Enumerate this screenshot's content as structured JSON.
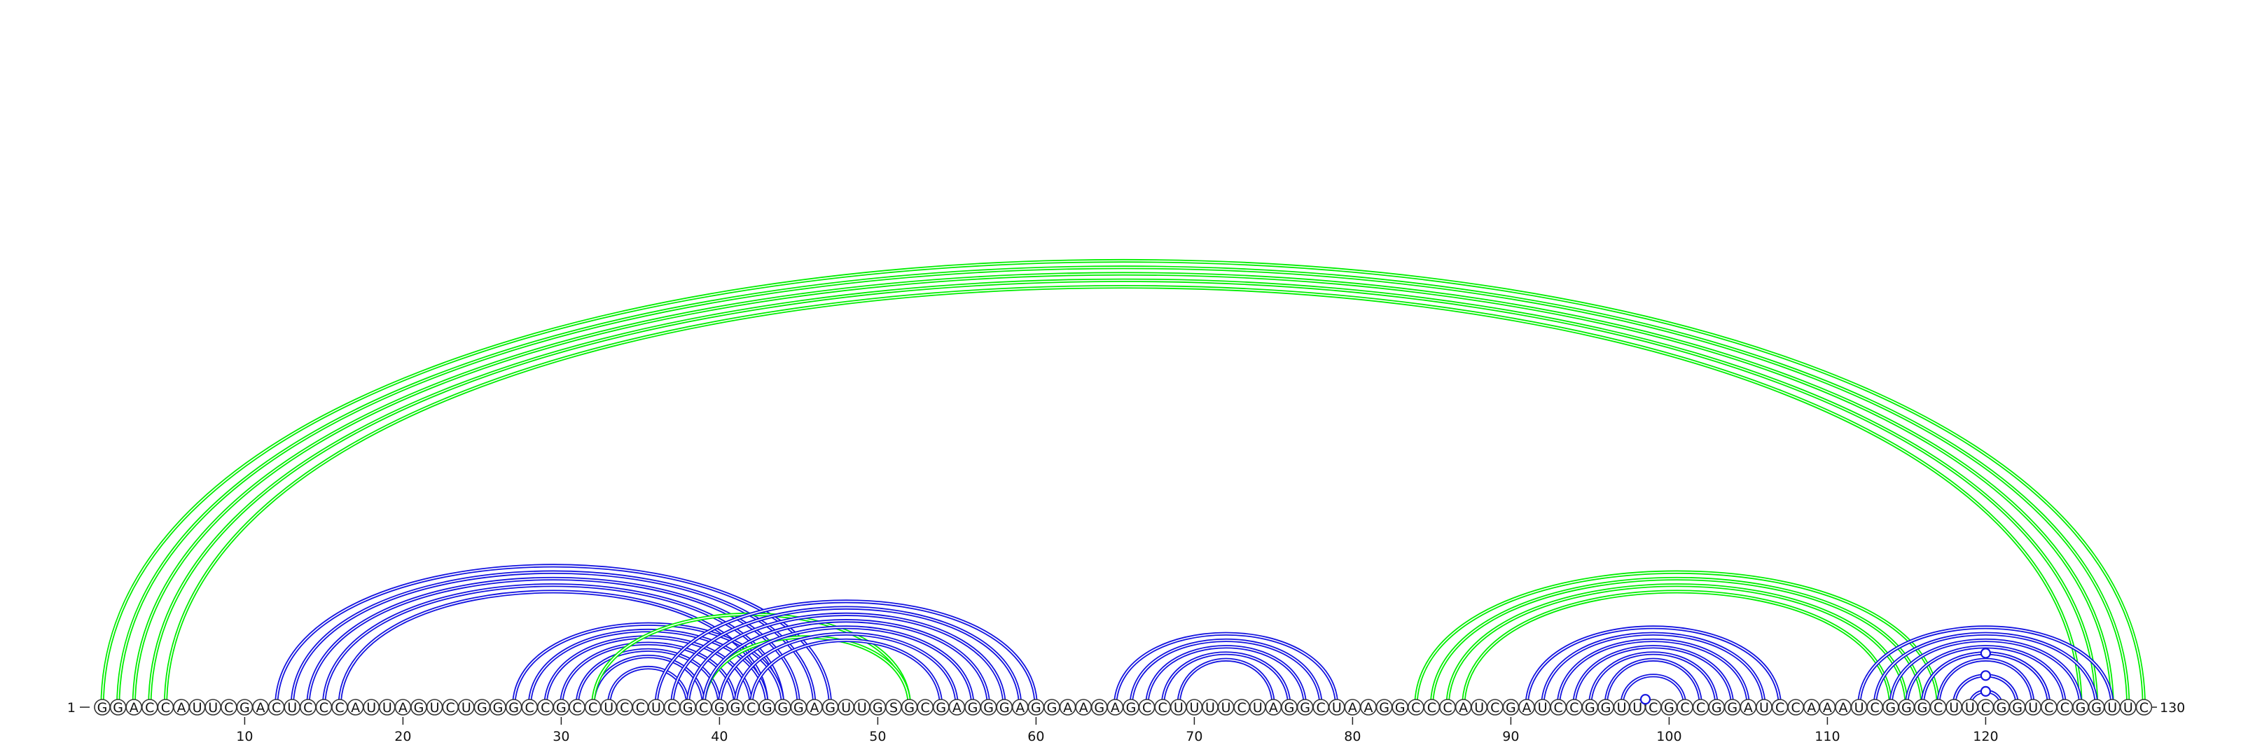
{
  "sequence": "GGACCAUUCGACUCCCAUUAGUCUGGGCCGCCUCCUCGCGGCGGGAGUUGSGCGAGGGAGGAAGAGCCUUUUCUAGGCUAAGGCCCAUCGAUCCGGUUCGCCGGAUCCAAAUCGGGCUUCGGUCCGGUUC",
  "labels": {
    "five_prime": "1",
    "three_prime": "130"
  },
  "ticks": [
    "10",
    "20",
    "30",
    "40",
    "50",
    "60",
    "70",
    "80",
    "90",
    "100",
    "110",
    "120"
  ],
  "colors": {
    "green": "#00ee00",
    "blue": "#1414e0"
  },
  "helices": [
    {
      "i": 1,
      "j": 130,
      "n": 1,
      "color": "green"
    },
    {
      "i": 2,
      "j": 129,
      "n": 4,
      "color": "green"
    },
    {
      "i": 12,
      "j": 47,
      "n": 5,
      "color": "blue"
    },
    {
      "i": 27,
      "j": 44,
      "n": 7,
      "color": "blue"
    },
    {
      "i": 32,
      "j": 52,
      "n": 1,
      "color": "green"
    },
    {
      "i": 39,
      "j": 52,
      "n": 1,
      "color": "green"
    },
    {
      "i": 36,
      "j": 60,
      "n": 7,
      "color": "blue"
    },
    {
      "i": 65,
      "j": 79,
      "n": 5,
      "color": "blue"
    },
    {
      "i": 84,
      "j": 117,
      "n": 4,
      "color": "green"
    },
    {
      "i": 91,
      "j": 107,
      "n": 7,
      "color": "blue"
    },
    {
      "i": 112,
      "j": 128,
      "n": 7,
      "color": "blue"
    }
  ],
  "gu_pairs": [
    {
      "i": 98,
      "j": 99,
      "color": "blue"
    },
    {
      "i": 116,
      "j": 124,
      "color": "blue"
    },
    {
      "i": 118,
      "j": 122,
      "color": "blue"
    },
    {
      "i": 119,
      "j": 121,
      "color": "blue"
    }
  ]
}
